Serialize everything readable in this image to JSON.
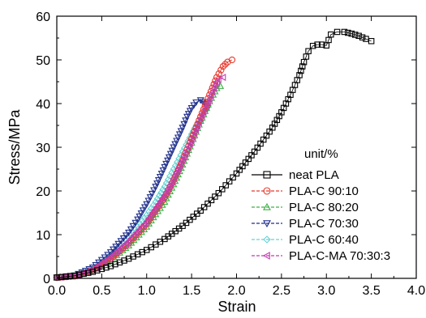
{
  "chart_data": {
    "type": "scatter",
    "title": "",
    "xlabel": "Strain",
    "ylabel": "Stress/MPa",
    "xlim": [
      0,
      4.0
    ],
    "ylim": [
      0,
      60
    ],
    "xticks": [
      "0.0",
      "0.5",
      "1.0",
      "1.5",
      "2.0",
      "2.5",
      "3.0",
      "3.5",
      "4.0"
    ],
    "yticks": [
      "0",
      "10",
      "20",
      "30",
      "40",
      "50",
      "60"
    ],
    "grid": false,
    "legend_title": "unit/%",
    "legend_position": "bottom-right",
    "series": [
      {
        "name": "neat PLA",
        "color": "#000000",
        "marker": "square",
        "points": [
          [
            0.0,
            0.2
          ],
          [
            0.2,
            0.6
          ],
          [
            0.4,
            1.5
          ],
          [
            0.6,
            2.8
          ],
          [
            0.8,
            4.5
          ],
          [
            1.0,
            6.5
          ],
          [
            1.2,
            9.0
          ],
          [
            1.4,
            12.0
          ],
          [
            1.6,
            15.5
          ],
          [
            1.8,
            19.5
          ],
          [
            2.0,
            24.0
          ],
          [
            2.2,
            29.0
          ],
          [
            2.4,
            34.5
          ],
          [
            2.5,
            38.0
          ],
          [
            2.6,
            42.0
          ],
          [
            2.7,
            46.5
          ],
          [
            2.75,
            49.5
          ],
          [
            2.8,
            52.0
          ],
          [
            2.85,
            53.2
          ],
          [
            2.9,
            53.5
          ],
          [
            2.95,
            53.5
          ],
          [
            3.0,
            53.3
          ],
          [
            3.05,
            55.8
          ],
          [
            3.12,
            56.4
          ],
          [
            3.2,
            56.4
          ],
          [
            3.28,
            56.0
          ],
          [
            3.36,
            55.5
          ],
          [
            3.44,
            54.8
          ],
          [
            3.5,
            54.3
          ]
        ]
      },
      {
        "name": "PLA-C 90:10",
        "color": "#e8392c",
        "marker": "circle",
        "points": [
          [
            0.0,
            0.2
          ],
          [
            0.2,
            0.5
          ],
          [
            0.4,
            1.8
          ],
          [
            0.6,
            4.5
          ],
          [
            0.8,
            8.0
          ],
          [
            1.0,
            12.5
          ],
          [
            1.2,
            18.5
          ],
          [
            1.3,
            22.5
          ],
          [
            1.4,
            27.0
          ],
          [
            1.5,
            32.0
          ],
          [
            1.6,
            37.0
          ],
          [
            1.7,
            42.0
          ],
          [
            1.78,
            46.0
          ],
          [
            1.85,
            48.5
          ],
          [
            1.9,
            49.5
          ],
          [
            1.95,
            50.0
          ]
        ]
      },
      {
        "name": "PLA-C 80:20",
        "color": "#3cb043",
        "marker": "triangle-up",
        "points": [
          [
            0.0,
            0.2
          ],
          [
            0.2,
            0.6
          ],
          [
            0.4,
            1.8
          ],
          [
            0.6,
            4.2
          ],
          [
            0.8,
            7.5
          ],
          [
            1.0,
            11.8
          ],
          [
            1.2,
            17.5
          ],
          [
            1.3,
            21.5
          ],
          [
            1.4,
            26.0
          ],
          [
            1.5,
            31.0
          ],
          [
            1.6,
            36.0
          ],
          [
            1.7,
            40.5
          ],
          [
            1.78,
            43.5
          ],
          [
            1.82,
            44.0
          ]
        ]
      },
      {
        "name": "PLA-C 70:30",
        "color": "#1f2e8c",
        "marker": "triangle-down",
        "points": [
          [
            0.0,
            0.2
          ],
          [
            0.2,
            0.7
          ],
          [
            0.4,
            2.5
          ],
          [
            0.6,
            6.0
          ],
          [
            0.8,
            10.5
          ],
          [
            0.9,
            13.5
          ],
          [
            1.0,
            17.0
          ],
          [
            1.1,
            21.0
          ],
          [
            1.2,
            25.5
          ],
          [
            1.3,
            30.0
          ],
          [
            1.4,
            34.5
          ],
          [
            1.45,
            37.0
          ],
          [
            1.5,
            39.0
          ],
          [
            1.55,
            40.3
          ],
          [
            1.6,
            40.8
          ],
          [
            1.65,
            40.0
          ],
          [
            1.68,
            39.0
          ]
        ]
      },
      {
        "name": "PLA-C 60:40",
        "color": "#66d4d4",
        "marker": "diamond",
        "points": [
          [
            0.0,
            0.2
          ],
          [
            0.2,
            0.6
          ],
          [
            0.4,
            2.2
          ],
          [
            0.6,
            5.2
          ],
          [
            0.8,
            9.2
          ],
          [
            1.0,
            14.5
          ],
          [
            1.1,
            17.5
          ],
          [
            1.2,
            21.0
          ],
          [
            1.3,
            25.0
          ],
          [
            1.4,
            29.0
          ],
          [
            1.5,
            33.0
          ],
          [
            1.55,
            35.0
          ],
          [
            1.6,
            36.0
          ]
        ]
      },
      {
        "name": "PLA-C-MA 70:30:3",
        "color": "#c13bb0",
        "marker": "triangle-left",
        "points": [
          [
            0.0,
            0.2
          ],
          [
            0.2,
            0.6
          ],
          [
            0.4,
            2.0
          ],
          [
            0.6,
            4.8
          ],
          [
            0.8,
            8.5
          ],
          [
            1.0,
            13.0
          ],
          [
            1.2,
            19.0
          ],
          [
            1.3,
            22.8
          ],
          [
            1.4,
            27.0
          ],
          [
            1.5,
            31.5
          ],
          [
            1.6,
            36.5
          ],
          [
            1.7,
            41.0
          ],
          [
            1.75,
            43.5
          ],
          [
            1.8,
            45.5
          ],
          [
            1.85,
            46.0
          ]
        ]
      }
    ]
  }
}
